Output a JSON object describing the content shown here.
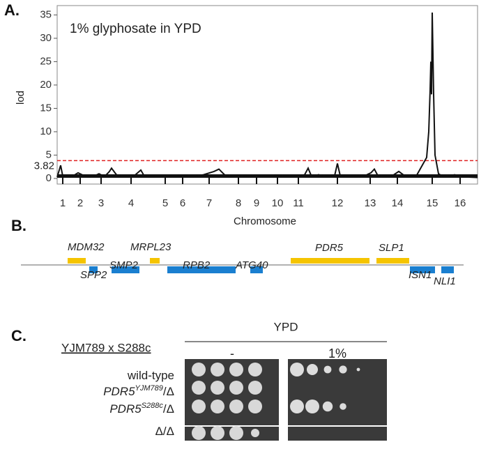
{
  "panels": [
    "A.",
    "B.",
    "C."
  ],
  "chart_data": {
    "type": "line",
    "annotation": "1% glyphosate in YPD",
    "ylabel": "lod",
    "xlabel": "Chromosome",
    "xlim": [
      0,
      603
    ],
    "ylim": [
      -1.2,
      37
    ],
    "xticks": [
      {
        "value": 8,
        "label": "1"
      },
      {
        "value": 33,
        "label": "2"
      },
      {
        "value": 63,
        "label": "3"
      },
      {
        "value": 106,
        "label": "4"
      },
      {
        "value": 155,
        "label": "5"
      },
      {
        "value": 180,
        "label": "6"
      },
      {
        "value": 218,
        "label": "7"
      },
      {
        "value": 260,
        "label": "8"
      },
      {
        "value": 286,
        "label": "9"
      },
      {
        "value": 316,
        "label": "10"
      },
      {
        "value": 346,
        "label": "11"
      },
      {
        "value": 402,
        "label": "12"
      },
      {
        "value": 449,
        "label": "13"
      },
      {
        "value": 488,
        "label": "14"
      },
      {
        "value": 538,
        "label": "15"
      },
      {
        "value": 578,
        "label": "16"
      }
    ],
    "yticks": [
      0,
      5,
      10,
      15,
      20,
      25,
      30,
      35
    ],
    "threshold": {
      "value": 3.82,
      "label": "3.82",
      "color": "#e02020"
    },
    "series": [
      {
        "color": "#111111",
        "x": [
          0,
          5,
          8,
          20,
          30,
          40,
          50,
          60,
          68,
          75,
          78,
          85,
          95,
          110,
          120,
          125,
          140,
          160,
          180,
          195,
          210,
          225,
          232,
          240,
          250,
          265,
          280,
          300,
          320,
          340,
          355,
          360,
          365,
          375,
          385,
          398,
          402,
          406,
          420,
          440,
          450,
          455,
          460,
          470,
          480,
          490,
          500,
          515,
          530,
          533,
          535,
          536,
          537,
          538,
          540,
          542,
          547,
          555,
          570,
          580,
          590,
          603
        ],
        "values": [
          0.3,
          2.8,
          0.5,
          0.3,
          1.2,
          0.5,
          0.3,
          1,
          0.4,
          1.5,
          2.2,
          0.8,
          0.3,
          0.5,
          1.8,
          0.5,
          0.3,
          0.3,
          0.5,
          0.4,
          0.8,
          1.5,
          2,
          0.8,
          0.3,
          0.6,
          0.3,
          0.4,
          0.5,
          0.3,
          0.8,
          2.2,
          0.4,
          0.8,
          0.3,
          0.6,
          3.2,
          0.6,
          0.3,
          0.5,
          1.2,
          2,
          0.6,
          0.3,
          0.5,
          1.5,
          0.4,
          0.5,
          4.5,
          10,
          19,
          25,
          18,
          35.5,
          18,
          5,
          1,
          0.3,
          0.8,
          0.5,
          0.3,
          0.2
        ]
      }
    ]
  },
  "genes": [
    {
      "label": "MDM32",
      "color": "#f5c400"
    },
    {
      "label": "SPP2",
      "color": "#1a7fd0"
    },
    {
      "label": "SMP2",
      "color": "#1a7fd0"
    },
    {
      "label": "MRPL23",
      "color": "#f5c400"
    },
    {
      "label": "RPB2",
      "color": "#1a7fd0"
    },
    {
      "label": "ATG40",
      "color": "#1a7fd0"
    },
    {
      "label": "PDR5",
      "color": "#f5c400"
    },
    {
      "label": "SLP1",
      "color": "#f5c400"
    },
    {
      "label": "ISN1",
      "color": "#1a7fd0"
    },
    {
      "label": "NLI1",
      "color": "#1a7fd0"
    }
  ],
  "spot_assay": {
    "medium": "YPD",
    "cross": "YJM789 x S288c",
    "conditions": [
      "-",
      "1%"
    ],
    "rows": [
      [
        "wild-type"
      ],
      [
        "PDR5",
        "YJM789",
        "/Δ"
      ],
      [
        "PDR5",
        "S288c",
        "/Δ"
      ],
      [
        "Δ/Δ"
      ]
    ]
  }
}
